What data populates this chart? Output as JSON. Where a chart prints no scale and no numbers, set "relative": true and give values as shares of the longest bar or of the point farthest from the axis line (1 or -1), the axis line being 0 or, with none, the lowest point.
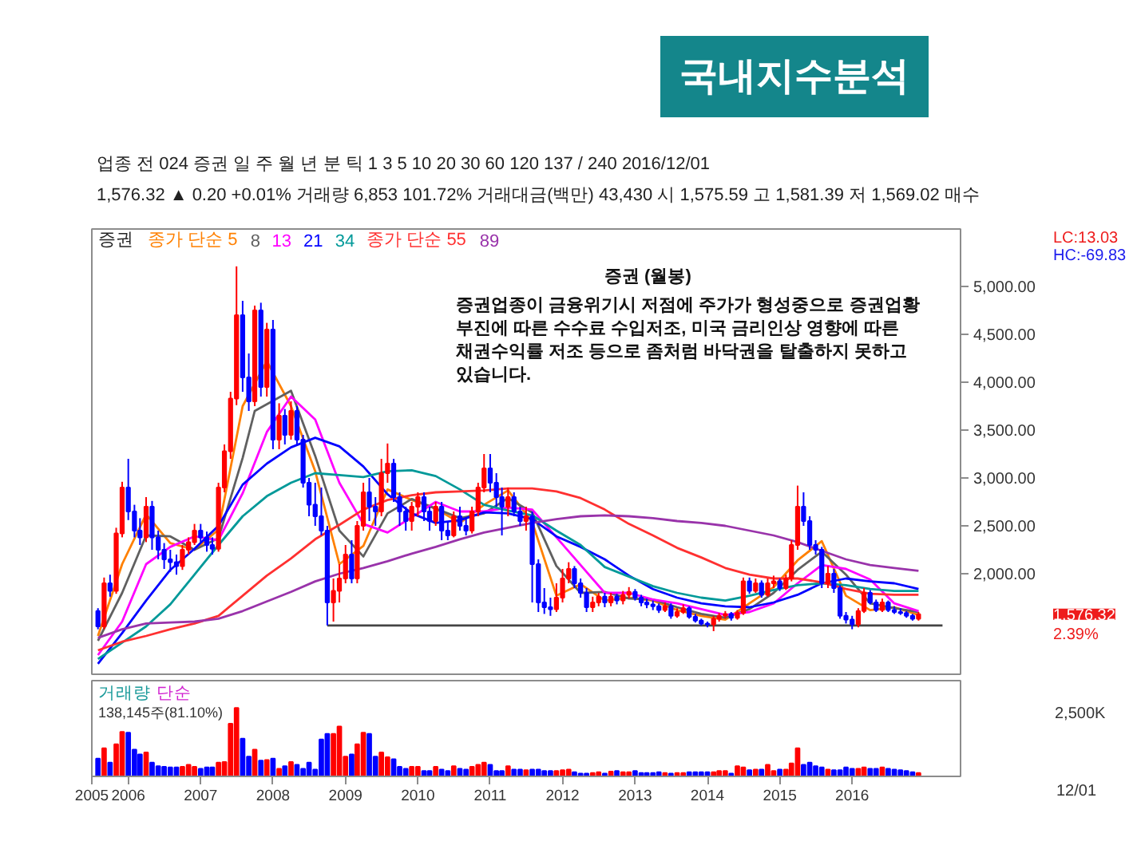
{
  "chart_data": [
    {
      "type": "other",
      "title": "국내지수분석",
      "annotations": [
        "업종 전 024 증권 일 주 월 년 분 틱 1 3 5 10 20 30 60 120 137 / 240 2016/12/01",
        "1,576.32 ▲ 0.20 +0.01% 거래량 6,853 101.72% 거래대금(백만) 43,430 시 1,575.59 고 1,581.39 저 1,569.02 매수"
      ]
    },
    {
      "type": "candlestick",
      "subtitle": "증권 (월봉)",
      "legend": "top left",
      "tick_labels": "y",
      "xlim": [
        "2005-07",
        "2017-07"
      ],
      "ylim": [
        950,
        5600
      ],
      "yticks": [
        {
          "value": 2000,
          "label": "2,000.00"
        },
        {
          "value": 2500,
          "label": "2,500.00"
        },
        {
          "value": 3000,
          "label": "3,000.00"
        },
        {
          "value": 3500,
          "label": "3,500.00"
        },
        {
          "value": 4000,
          "label": "4,000.00"
        },
        {
          "value": 4500,
          "label": "4,500.00"
        },
        {
          "value": 5000,
          "label": "5,000.00"
        }
      ],
      "annotations": [
        "증권",
        "증권업종이 금융위기시 저점에 주가가 형성중으로 증권업황 부진에 따른 수수료 수입저조, 미국 금리인상 영향에 따른 채권수익률 저조 등으로 좀처럼 바닥권을 탈출하지 못하고 있습니다.",
        "1,576.32",
        "2.39%",
        "LC:13.03",
        "HC:-69.83"
      ],
      "x": [
        "2005-08",
        "2005-09",
        "2005-10",
        "2005-11",
        "2005-12",
        "2006-01",
        "2006-02",
        "2006-03",
        "2006-04",
        "2006-05",
        "2006-06",
        "2006-07",
        "2006-08",
        "2006-09",
        "2006-10",
        "2006-11",
        "2006-12",
        "2007-01",
        "2007-02",
        "2007-03",
        "2007-04",
        "2007-05",
        "2007-06",
        "2007-07",
        "2007-08",
        "2007-09",
        "2007-10",
        "2007-11",
        "2007-12",
        "2008-01",
        "2008-02",
        "2008-03",
        "2008-04",
        "2008-05",
        "2008-06",
        "2008-07",
        "2008-08",
        "2008-09",
        "2008-10",
        "2008-11",
        "2008-12",
        "2009-01",
        "2009-02",
        "2009-03",
        "2009-04",
        "2009-05",
        "2009-06",
        "2009-07",
        "2009-08",
        "2009-09",
        "2009-10",
        "2009-11",
        "2009-12",
        "2010-01",
        "2010-02",
        "2010-03",
        "2010-04",
        "2010-05",
        "2010-06",
        "2010-07",
        "2010-08",
        "2010-09",
        "2010-10",
        "2010-11",
        "2010-12",
        "2011-01",
        "2011-02",
        "2011-03",
        "2011-04",
        "2011-05",
        "2011-06",
        "2011-07",
        "2011-08",
        "2011-09",
        "2011-10",
        "2011-11",
        "2011-12",
        "2012-01",
        "2012-02",
        "2012-03",
        "2012-04",
        "2012-05",
        "2012-06",
        "2012-07",
        "2012-08",
        "2012-09",
        "2012-10",
        "2012-11",
        "2012-12",
        "2013-01",
        "2013-02",
        "2013-03",
        "2013-04",
        "2013-05",
        "2013-06",
        "2013-07",
        "2013-08",
        "2013-09",
        "2013-10",
        "2013-11",
        "2013-12",
        "2014-01",
        "2014-02",
        "2014-03",
        "2014-04",
        "2014-05",
        "2014-06",
        "2014-07",
        "2014-08",
        "2014-09",
        "2014-10",
        "2014-11",
        "2014-12",
        "2015-01",
        "2015-02",
        "2015-03",
        "2015-04",
        "2015-05",
        "2015-06",
        "2015-07",
        "2015-08",
        "2015-09",
        "2015-10",
        "2015-11",
        "2015-12",
        "2016-01",
        "2016-02",
        "2016-03",
        "2016-04",
        "2016-05",
        "2016-06",
        "2016-07",
        "2016-08",
        "2016-09",
        "2016-10",
        "2016-11",
        "2016-12"
      ],
      "ohlc": [
        [
          1610,
          1640,
          1420,
          1450
        ],
        [
          1450,
          1960,
          1420,
          1900
        ],
        [
          1900,
          1990,
          1760,
          1820
        ],
        [
          1820,
          2480,
          1790,
          2420
        ],
        [
          2420,
          2960,
          2380,
          2900
        ],
        [
          2900,
          3200,
          2560,
          2650
        ],
        [
          2650,
          2720,
          2380,
          2450
        ],
        [
          2450,
          2580,
          2300,
          2380
        ],
        [
          2380,
          2800,
          2330,
          2700
        ],
        [
          2700,
          2760,
          2250,
          2380
        ],
        [
          2380,
          2450,
          2150,
          2250
        ],
        [
          2250,
          2320,
          2050,
          2150
        ],
        [
          2150,
          2250,
          2020,
          2120
        ],
        [
          2120,
          2200,
          1990,
          2080
        ],
        [
          2080,
          2300,
          2040,
          2250
        ],
        [
          2250,
          2380,
          2200,
          2330
        ],
        [
          2330,
          2520,
          2300,
          2450
        ],
        [
          2450,
          2520,
          2330,
          2380
        ],
        [
          2380,
          2440,
          2230,
          2300
        ],
        [
          2300,
          2380,
          2200,
          2260
        ],
        [
          2260,
          2950,
          2230,
          2900
        ],
        [
          2900,
          3350,
          2850,
          3280
        ],
        [
          3280,
          3900,
          3200,
          3830
        ],
        [
          3830,
          5210,
          3760,
          4700
        ],
        [
          4700,
          4850,
          3900,
          4050
        ],
        [
          4050,
          4300,
          3700,
          3800
        ],
        [
          3800,
          4800,
          3750,
          4750
        ],
        [
          4750,
          4830,
          3850,
          3950
        ],
        [
          3950,
          4620,
          3850,
          4550
        ],
        [
          4550,
          4650,
          3300,
          3400
        ],
        [
          3400,
          3780,
          3300,
          3650
        ],
        [
          3650,
          3720,
          3350,
          3450
        ],
        [
          3450,
          3800,
          3400,
          3700
        ],
        [
          3700,
          3750,
          3350,
          3400
        ],
        [
          3400,
          3450,
          2900,
          2950
        ],
        [
          2950,
          3000,
          2600,
          2720
        ],
        [
          2720,
          2950,
          2500,
          2600
        ],
        [
          2600,
          2900,
          2400,
          2450
        ],
        [
          2450,
          2500,
          1460,
          1700
        ],
        [
          1700,
          1950,
          1500,
          1820
        ],
        [
          1820,
          2100,
          1700,
          1950
        ],
        [
          1950,
          2300,
          1900,
          2200
        ],
        [
          2200,
          2350,
          1900,
          1950
        ],
        [
          1950,
          2550,
          1900,
          2500
        ],
        [
          2500,
          2950,
          2450,
          2850
        ],
        [
          2850,
          3000,
          2550,
          2700
        ],
        [
          2700,
          2800,
          2500,
          2650
        ],
        [
          2650,
          3200,
          2600,
          3050
        ],
        [
          3050,
          3360,
          2950,
          3150
        ],
        [
          3150,
          3200,
          2750,
          2800
        ],
        [
          2800,
          2850,
          2500,
          2650
        ],
        [
          2650,
          2700,
          2450,
          2550
        ],
        [
          2550,
          2750,
          2450,
          2700
        ],
        [
          2700,
          2850,
          2600,
          2800
        ],
        [
          2800,
          2850,
          2550,
          2650
        ],
        [
          2650,
          2700,
          2450,
          2550
        ],
        [
          2550,
          2750,
          2500,
          2700
        ],
        [
          2700,
          2750,
          2350,
          2450
        ],
        [
          2450,
          2550,
          2350,
          2400
        ],
        [
          2400,
          2650,
          2380,
          2600
        ],
        [
          2600,
          2700,
          2450,
          2500
        ],
        [
          2500,
          2580,
          2400,
          2450
        ],
        [
          2450,
          2700,
          2420,
          2650
        ],
        [
          2650,
          2950,
          2600,
          2900
        ],
        [
          2900,
          3250,
          2850,
          3100
        ],
        [
          3100,
          3250,
          2850,
          2950
        ],
        [
          2950,
          3050,
          2700,
          2800
        ],
        [
          2800,
          2900,
          2400,
          2700
        ],
        [
          2700,
          2900,
          2600,
          2800
        ],
        [
          2800,
          2850,
          2600,
          2650
        ],
        [
          2650,
          2700,
          2500,
          2550
        ],
        [
          2550,
          2700,
          2450,
          2600
        ],
        [
          2600,
          2650,
          1700,
          2100
        ],
        [
          2100,
          2150,
          1600,
          1700
        ],
        [
          1700,
          1850,
          1580,
          1650
        ],
        [
          1650,
          1750,
          1560,
          1630
        ],
        [
          1630,
          1900,
          1600,
          1750
        ],
        [
          1750,
          2050,
          1700,
          1950
        ],
        [
          1950,
          2120,
          1900,
          2050
        ],
        [
          2050,
          2080,
          1850,
          1900
        ],
        [
          1900,
          1950,
          1750,
          1800
        ],
        [
          1800,
          1850,
          1600,
          1650
        ],
        [
          1650,
          1760,
          1600,
          1700
        ],
        [
          1700,
          1800,
          1660,
          1760
        ],
        [
          1760,
          1800,
          1650,
          1700
        ],
        [
          1700,
          1800,
          1660,
          1760
        ],
        [
          1760,
          1790,
          1680,
          1720
        ],
        [
          1720,
          1820,
          1680,
          1780
        ],
        [
          1780,
          1860,
          1740,
          1810
        ],
        [
          1810,
          1840,
          1720,
          1750
        ],
        [
          1750,
          1780,
          1660,
          1700
        ],
        [
          1700,
          1740,
          1640,
          1680
        ],
        [
          1680,
          1720,
          1620,
          1660
        ],
        [
          1660,
          1690,
          1590,
          1620
        ],
        [
          1620,
          1700,
          1600,
          1660
        ],
        [
          1660,
          1690,
          1530,
          1560
        ],
        [
          1560,
          1640,
          1540,
          1600
        ],
        [
          1600,
          1680,
          1580,
          1640
        ],
        [
          1640,
          1660,
          1530,
          1550
        ],
        [
          1550,
          1580,
          1490,
          1510
        ],
        [
          1510,
          1530,
          1460,
          1480
        ],
        [
          1480,
          1500,
          1440,
          1470
        ],
        [
          1470,
          1560,
          1400,
          1530
        ],
        [
          1530,
          1590,
          1500,
          1560
        ],
        [
          1560,
          1610,
          1530,
          1580
        ],
        [
          1580,
          1600,
          1510,
          1540
        ],
        [
          1540,
          1620,
          1520,
          1590
        ],
        [
          1590,
          1960,
          1570,
          1920
        ],
        [
          1920,
          1960,
          1790,
          1820
        ],
        [
          1820,
          1950,
          1800,
          1900
        ],
        [
          1900,
          1930,
          1750,
          1780
        ],
        [
          1780,
          1950,
          1760,
          1900
        ],
        [
          1900,
          1980,
          1850,
          1920
        ],
        [
          1920,
          1950,
          1820,
          1850
        ],
        [
          1850,
          1990,
          1830,
          1950
        ],
        [
          1950,
          2350,
          1920,
          2300
        ],
        [
          2300,
          2920,
          2250,
          2700
        ],
        [
          2700,
          2850,
          2500,
          2550
        ],
        [
          2550,
          2600,
          2250,
          2300
        ],
        [
          2300,
          2350,
          2200,
          2250
        ],
        [
          2250,
          2280,
          1850,
          1900
        ],
        [
          1900,
          2080,
          1850,
          2000
        ],
        [
          2000,
          2050,
          1800,
          1850
        ],
        [
          1850,
          1880,
          1530,
          1560
        ],
        [
          1560,
          1600,
          1480,
          1520
        ],
        [
          1520,
          1560,
          1420,
          1470
        ],
        [
          1470,
          1640,
          1440,
          1610
        ],
        [
          1610,
          1850,
          1590,
          1800
        ],
        [
          1800,
          1830,
          1680,
          1700
        ],
        [
          1700,
          1730,
          1600,
          1620
        ],
        [
          1620,
          1740,
          1600,
          1700
        ],
        [
          1700,
          1720,
          1600,
          1620
        ],
        [
          1620,
          1660,
          1580,
          1600
        ],
        [
          1600,
          1640,
          1570,
          1590
        ],
        [
          1590,
          1610,
          1540,
          1560
        ],
        [
          1560,
          1580,
          1510,
          1530
        ],
        [
          1530,
          1600,
          1510,
          1576.32
        ]
      ],
      "colors": [
        "#0000ff",
        "#ff0000",
        "#0000ff",
        "#ff0000",
        "#ff0000",
        "#0000ff",
        "#0000ff",
        "#0000ff",
        "#ff0000",
        "#0000ff",
        "#0000ff",
        "#0000ff",
        "#0000ff",
        "#0000ff",
        "#ff0000",
        "#ff0000",
        "#ff0000",
        "#0000ff",
        "#0000ff",
        "#0000ff",
        "#ff0000",
        "#ff0000",
        "#ff0000",
        "#ff0000",
        "#0000ff",
        "#0000ff",
        "#ff0000",
        "#0000ff",
        "#ff0000",
        "#0000ff",
        "#ff0000",
        "#0000ff",
        "#ff0000",
        "#0000ff",
        "#0000ff",
        "#0000ff",
        "#0000ff",
        "#0000ff",
        "#0000ff",
        "#ff0000",
        "#ff0000",
        "#ff0000",
        "#0000ff",
        "#ff0000",
        "#ff0000",
        "#0000ff",
        "#0000ff",
        "#ff0000",
        "#ff0000",
        "#0000ff",
        "#0000ff",
        "#0000ff",
        "#ff0000",
        "#ff0000",
        "#0000ff",
        "#0000ff",
        "#ff0000",
        "#0000ff",
        "#0000ff",
        "#ff0000",
        "#0000ff",
        "#0000ff",
        "#ff0000",
        "#ff0000",
        "#ff0000",
        "#0000ff",
        "#0000ff",
        "#0000ff",
        "#ff0000",
        "#0000ff",
        "#0000ff",
        "#ff0000",
        "#0000ff",
        "#0000ff",
        "#0000ff",
        "#0000ff",
        "#ff0000",
        "#ff0000",
        "#ff0000",
        "#0000ff",
        "#0000ff",
        "#0000ff",
        "#ff0000",
        "#ff0000",
        "#0000ff",
        "#ff0000",
        "#0000ff",
        "#ff0000",
        "#ff0000",
        "#0000ff",
        "#0000ff",
        "#0000ff",
        "#0000ff",
        "#0000ff",
        "#ff0000",
        "#0000ff",
        "#ff0000",
        "#ff0000",
        "#0000ff",
        "#0000ff",
        "#0000ff",
        "#0000ff",
        "#ff0000",
        "#ff0000",
        "#ff0000",
        "#0000ff",
        "#ff0000",
        "#ff0000",
        "#0000ff",
        "#ff0000",
        "#0000ff",
        "#ff0000",
        "#ff0000",
        "#0000ff",
        "#ff0000",
        "#ff0000",
        "#ff0000",
        "#0000ff",
        "#0000ff",
        "#0000ff",
        "#0000ff",
        "#ff0000",
        "#0000ff",
        "#0000ff",
        "#0000ff",
        "#0000ff",
        "#ff0000",
        "#ff0000",
        "#0000ff",
        "#0000ff",
        "#ff0000",
        "#0000ff",
        "#0000ff",
        "#0000ff",
        "#0000ff",
        "#0000ff",
        "#ff0000"
      ],
      "series": [
        {
          "name": "종가 단순 5",
          "type": "line",
          "color": "#ff8000",
          "x": [
            "2005-08",
            "2005-12",
            "2006-04",
            "2006-08",
            "2006-12",
            "2007-04",
            "2007-08",
            "2007-12",
            "2008-04",
            "2008-08",
            "2008-12",
            "2009-04",
            "2009-08",
            "2009-12",
            "2010-04",
            "2010-08",
            "2010-12",
            "2011-04",
            "2011-08",
            "2011-12",
            "2012-04",
            "2012-08",
            "2012-12",
            "2013-04",
            "2013-08",
            "2013-12",
            "2014-04",
            "2014-08",
            "2014-12",
            "2015-04",
            "2015-08",
            "2015-12",
            "2016-04",
            "2016-08",
            "2016-12"
          ],
          "values": [
            1350,
            2100,
            2620,
            2320,
            2250,
            2460,
            3750,
            4220,
            3750,
            3070,
            2100,
            2290,
            2880,
            2770,
            2680,
            2530,
            2720,
            2870,
            2540,
            1770,
            1890,
            1720,
            1750,
            1720,
            1620,
            1560,
            1520,
            1690,
            1860,
            2140,
            2340,
            1770,
            1620,
            1650,
            1570
          ]
        },
        {
          "name": "8",
          "type": "line",
          "color": "#606060",
          "x": [
            "2005-08",
            "2005-12",
            "2006-04",
            "2006-08",
            "2006-12",
            "2007-04",
            "2007-08",
            "2007-10",
            "2008-04",
            "2008-08",
            "2008-12",
            "2009-04",
            "2009-08",
            "2009-12",
            "2010-04",
            "2010-08",
            "2010-12",
            "2011-04",
            "2011-08",
            "2011-12",
            "2012-04",
            "2012-08",
            "2012-12",
            "2013-04",
            "2013-08",
            "2013-12",
            "2014-04",
            "2014-08",
            "2014-12",
            "2015-04",
            "2015-08",
            "2015-12",
            "2016-04",
            "2016-08",
            "2016-12"
          ],
          "values": [
            1300,
            1800,
            2400,
            2390,
            2250,
            2370,
            3210,
            3700,
            3910,
            3230,
            2450,
            2180,
            2630,
            2780,
            2680,
            2580,
            2630,
            2790,
            2640,
            2080,
            1800,
            1810,
            1740,
            1730,
            1650,
            1580,
            1540,
            1630,
            1800,
            2040,
            2230,
            1990,
            1690,
            1640,
            1600
          ]
        },
        {
          "name": "13",
          "type": "line",
          "color": "#ff00ff",
          "x": [
            "2005-08",
            "2005-12",
            "2006-04",
            "2006-08",
            "2006-12",
            "2007-04",
            "2007-08",
            "2007-12",
            "2008-04",
            "2008-08",
            "2008-12",
            "2009-04",
            "2009-08",
            "2009-12",
            "2010-04",
            "2010-08",
            "2010-12",
            "2011-04",
            "2011-08",
            "2011-12",
            "2012-04",
            "2012-08",
            "2012-12",
            "2013-04",
            "2013-08",
            "2013-12",
            "2014-04",
            "2014-08",
            "2014-12",
            "2015-04",
            "2015-08",
            "2015-12",
            "2016-04",
            "2016-08",
            "2016-12"
          ],
          "values": [
            1150,
            1500,
            2100,
            2280,
            2390,
            2350,
            2840,
            3480,
            3850,
            3610,
            2950,
            2520,
            2430,
            2590,
            2750,
            2650,
            2650,
            2690,
            2670,
            2380,
            2090,
            1800,
            1800,
            1730,
            1690,
            1630,
            1570,
            1600,
            1690,
            1900,
            2090,
            2050,
            1940,
            1690,
            1610
          ]
        },
        {
          "name": "21",
          "type": "line",
          "color": "#0000ff",
          "x": [
            "2005-08",
            "2005-12",
            "2006-04",
            "2006-08",
            "2006-12",
            "2007-04",
            "2007-08",
            "2007-12",
            "2008-04",
            "2008-08",
            "2008-12",
            "2009-04",
            "2009-08",
            "2009-12",
            "2010-04",
            "2010-08",
            "2010-12",
            "2011-04",
            "2011-08",
            "2011-12",
            "2012-04",
            "2012-08",
            "2012-12",
            "2013-04",
            "2013-08",
            "2013-12",
            "2014-04",
            "2014-08",
            "2014-12",
            "2015-04",
            "2015-08",
            "2015-12",
            "2016-04",
            "2016-08",
            "2016-12"
          ],
          "values": [
            1060,
            1380,
            1720,
            2040,
            2260,
            2500,
            2930,
            3150,
            3320,
            3420,
            3330,
            3120,
            2830,
            2630,
            2530,
            2560,
            2640,
            2630,
            2570,
            2390,
            2280,
            2150,
            1980,
            1840,
            1750,
            1690,
            1660,
            1650,
            1700,
            1780,
            1900,
            1950,
            1920,
            1900,
            1840
          ]
        },
        {
          "name": "34",
          "type": "line",
          "color": "#009999",
          "x": [
            "2005-08",
            "2005-12",
            "2006-04",
            "2006-08",
            "2006-12",
            "2007-04",
            "2007-08",
            "2007-12",
            "2008-04",
            "2008-08",
            "2008-12",
            "2009-04",
            "2009-08",
            "2009-12",
            "2010-04",
            "2010-08",
            "2010-12",
            "2011-04",
            "2011-08",
            "2011-12",
            "2012-04",
            "2012-08",
            "2012-12",
            "2013-04",
            "2013-08",
            "2013-12",
            "2014-04",
            "2014-08",
            "2014-12",
            "2015-04",
            "2015-08",
            "2015-12",
            "2016-04",
            "2016-08",
            "2016-12"
          ],
          "values": [
            1110,
            1280,
            1450,
            1680,
            1990,
            2300,
            2600,
            2810,
            2950,
            3050,
            3030,
            3010,
            3070,
            3080,
            3020,
            2880,
            2720,
            2660,
            2610,
            2450,
            2300,
            2070,
            1970,
            1870,
            1800,
            1750,
            1720,
            1770,
            1830,
            1880,
            1900,
            1880,
            1840,
            1820,
            1820
          ]
        },
        {
          "name": "종가 단순 55",
          "type": "line",
          "color": "#ff3030",
          "x": [
            "2005-08",
            "2005-12",
            "2006-04",
            "2006-08",
            "2006-12",
            "2007-04",
            "2007-08",
            "2007-12",
            "2008-04",
            "2008-08",
            "2008-12",
            "2009-04",
            "2009-08",
            "2009-12",
            "2010-04",
            "2010-08",
            "2010-12",
            "2011-04",
            "2011-08",
            "2011-12",
            "2012-04",
            "2012-08",
            "2012-12",
            "2013-04",
            "2013-08",
            "2013-12",
            "2014-04",
            "2014-08",
            "2014-12",
            "2015-04",
            "2015-08",
            "2015-12",
            "2016-04",
            "2016-08",
            "2016-12"
          ],
          "values": [
            1200,
            1290,
            1350,
            1420,
            1480,
            1560,
            1770,
            1980,
            2160,
            2360,
            2510,
            2670,
            2770,
            2820,
            2850,
            2860,
            2870,
            2890,
            2890,
            2860,
            2790,
            2670,
            2520,
            2400,
            2270,
            2170,
            2060,
            1990,
            1950,
            1950,
            1910,
            1840,
            1790,
            1780,
            1780
          ]
        },
        {
          "name": "89",
          "type": "line",
          "color": "#9933aa",
          "x": [
            "2005-08",
            "2005-12",
            "2006-04",
            "2006-08",
            "2006-12",
            "2007-04",
            "2007-08",
            "2007-12",
            "2008-04",
            "2008-08",
            "2008-12",
            "2009-04",
            "2009-08",
            "2009-12",
            "2010-04",
            "2010-08",
            "2010-12",
            "2011-04",
            "2011-08",
            "2011-12",
            "2012-04",
            "2012-08",
            "2012-12",
            "2013-04",
            "2013-08",
            "2013-12",
            "2014-04",
            "2014-08",
            "2014-12",
            "2015-04",
            "2015-08",
            "2015-12",
            "2016-04",
            "2016-08",
            "2016-12"
          ],
          "values": [
            1330,
            1420,
            1480,
            1490,
            1500,
            1530,
            1610,
            1710,
            1810,
            1920,
            2000,
            2060,
            2130,
            2210,
            2280,
            2360,
            2430,
            2480,
            2530,
            2570,
            2600,
            2610,
            2600,
            2580,
            2550,
            2530,
            2500,
            2450,
            2400,
            2330,
            2240,
            2150,
            2090,
            2060,
            2030
          ]
        },
        {
          "type": "line",
          "color": "#444444",
          "x": [
            "2008-10",
            "2017-04"
          ],
          "values": [
            1460,
            1460
          ]
        }
      ]
    },
    {
      "type": "bar",
      "relative": true,
      "xlim": [
        "2005-07",
        "2017-07"
      ],
      "xticks": [
        {
          "value": "2005-07",
          "label": "2005"
        },
        {
          "value": "2006-01",
          "label": "2006"
        },
        {
          "value": "2007-01",
          "label": "2007"
        },
        {
          "value": "2008-01",
          "label": "2008"
        },
        {
          "value": "2009-01",
          "label": "2009"
        },
        {
          "value": "2010-01",
          "label": "2010"
        },
        {
          "value": "2011-01",
          "label": "2011"
        },
        {
          "value": "2012-01",
          "label": "2012"
        },
        {
          "value": "2013-01",
          "label": "2013"
        },
        {
          "value": "2014-01",
          "label": "2014"
        },
        {
          "value": "2015-01",
          "label": "2015"
        },
        {
          "value": "2016-01",
          "label": "2016"
        }
      ],
      "annotations": [
        "거래량",
        "단순",
        "138,145주(81.10%)",
        "2,500K",
        "12/01"
      ],
      "x": [
        "2005-08",
        "2005-09",
        "2005-10",
        "2005-11",
        "2005-12",
        "2006-01",
        "2006-02",
        "2006-03",
        "2006-04",
        "2006-05",
        "2006-06",
        "2006-07",
        "2006-08",
        "2006-09",
        "2006-10",
        "2006-11",
        "2006-12",
        "2007-01",
        "2007-02",
        "2007-03",
        "2007-04",
        "2007-05",
        "2007-06",
        "2007-07",
        "2007-08",
        "2007-09",
        "2007-10",
        "2007-11",
        "2007-12",
        "2008-01",
        "2008-02",
        "2008-03",
        "2008-04",
        "2008-05",
        "2008-06",
        "2008-07",
        "2008-08",
        "2008-09",
        "2008-10",
        "2008-11",
        "2008-12",
        "2009-01",
        "2009-02",
        "2009-03",
        "2009-04",
        "2009-05",
        "2009-06",
        "2009-07",
        "2009-08",
        "2009-09",
        "2009-10",
        "2009-11",
        "2009-12",
        "2010-01",
        "2010-02",
        "2010-03",
        "2010-04",
        "2010-05",
        "2010-06",
        "2010-07",
        "2010-08",
        "2010-09",
        "2010-10",
        "2010-11",
        "2010-12",
        "2011-01",
        "2011-02",
        "2011-03",
        "2011-04",
        "2011-05",
        "2011-06",
        "2011-07",
        "2011-08",
        "2011-09",
        "2011-10",
        "2011-11",
        "2011-12",
        "2012-01",
        "2012-02",
        "2012-03",
        "2012-04",
        "2012-05",
        "2012-06",
        "2012-07",
        "2012-08",
        "2012-09",
        "2012-10",
        "2012-11",
        "2012-12",
        "2013-01",
        "2013-02",
        "2013-03",
        "2013-04",
        "2013-05",
        "2013-06",
        "2013-07",
        "2013-08",
        "2013-09",
        "2013-10",
        "2013-11",
        "2013-12",
        "2014-01",
        "2014-02",
        "2014-03",
        "2014-04",
        "2014-05",
        "2014-06",
        "2014-07",
        "2014-08",
        "2014-09",
        "2014-10",
        "2014-11",
        "2014-12",
        "2015-01",
        "2015-02",
        "2015-03",
        "2015-04",
        "2015-05",
        "2015-06",
        "2015-07",
        "2015-08",
        "2015-09",
        "2015-10",
        "2015-11",
        "2015-12",
        "2016-01",
        "2016-02",
        "2016-03",
        "2016-04",
        "2016-05",
        "2016-06",
        "2016-07",
        "2016-08",
        "2016-09",
        "2016-10",
        "2016-11",
        "2016-12"
      ],
      "values": [
        0.26,
        0.41,
        0.2,
        0.47,
        0.65,
        0.64,
        0.39,
        0.32,
        0.35,
        0.2,
        0.15,
        0.14,
        0.13,
        0.13,
        0.14,
        0.17,
        0.14,
        0.11,
        0.13,
        0.13,
        0.2,
        0.21,
        0.77,
        1,
        0.55,
        0.29,
        0.39,
        0.23,
        0.24,
        0.26,
        0.11,
        0.15,
        0.21,
        0.17,
        0.11,
        0.2,
        0.1,
        0.54,
        0.62,
        0.62,
        0.73,
        0.29,
        0.32,
        0.47,
        0.64,
        0.62,
        0.29,
        0.35,
        0.28,
        0.25,
        0.14,
        0.11,
        0.14,
        0.14,
        0.08,
        0.08,
        0.14,
        0.1,
        0.08,
        0.15,
        0.11,
        0.1,
        0.14,
        0.17,
        0.2,
        0.17,
        0.08,
        0.08,
        0.15,
        0.1,
        0.1,
        0.09,
        0.1,
        0.1,
        0.08,
        0.08,
        0.08,
        0.09,
        0.1,
        0.06,
        0.04,
        0.04,
        0.05,
        0.06,
        0.04,
        0.07,
        0.08,
        0.06,
        0.06,
        0.08,
        0.05,
        0.05,
        0.05,
        0.06,
        0.05,
        0.04,
        0.05,
        0.05,
        0.06,
        0.06,
        0.06,
        0.06,
        0.06,
        0.08,
        0.08,
        0.04,
        0.15,
        0.13,
        0.09,
        0.1,
        0.1,
        0.17,
        0.08,
        0.1,
        0.1,
        0.19,
        0.41,
        0.17,
        0.2,
        0.15,
        0.13,
        0.1,
        0.09,
        0.09,
        0.13,
        0.11,
        0.11,
        0.13,
        0.11,
        0.11,
        0.13,
        0.11,
        0.1,
        0.09,
        0.08,
        0.06,
        0.05
      ],
      "colors": [
        "#0000ff",
        "#ff0000",
        "#0000ff",
        "#ff0000",
        "#ff0000",
        "#0000ff",
        "#0000ff",
        "#0000ff",
        "#ff0000",
        "#0000ff",
        "#0000ff",
        "#0000ff",
        "#0000ff",
        "#0000ff",
        "#ff0000",
        "#ff0000",
        "#ff0000",
        "#0000ff",
        "#0000ff",
        "#0000ff",
        "#ff0000",
        "#ff0000",
        "#ff0000",
        "#ff0000",
        "#0000ff",
        "#0000ff",
        "#ff0000",
        "#0000ff",
        "#ff0000",
        "#0000ff",
        "#ff0000",
        "#0000ff",
        "#ff0000",
        "#0000ff",
        "#0000ff",
        "#0000ff",
        "#0000ff",
        "#0000ff",
        "#0000ff",
        "#ff0000",
        "#ff0000",
        "#ff0000",
        "#0000ff",
        "#ff0000",
        "#ff0000",
        "#0000ff",
        "#0000ff",
        "#ff0000",
        "#ff0000",
        "#0000ff",
        "#0000ff",
        "#0000ff",
        "#ff0000",
        "#ff0000",
        "#0000ff",
        "#0000ff",
        "#ff0000",
        "#0000ff",
        "#0000ff",
        "#ff0000",
        "#0000ff",
        "#0000ff",
        "#ff0000",
        "#ff0000",
        "#ff0000",
        "#0000ff",
        "#0000ff",
        "#0000ff",
        "#ff0000",
        "#0000ff",
        "#0000ff",
        "#ff0000",
        "#0000ff",
        "#0000ff",
        "#0000ff",
        "#0000ff",
        "#ff0000",
        "#ff0000",
        "#ff0000",
        "#0000ff",
        "#0000ff",
        "#0000ff",
        "#ff0000",
        "#ff0000",
        "#0000ff",
        "#ff0000",
        "#0000ff",
        "#ff0000",
        "#ff0000",
        "#0000ff",
        "#0000ff",
        "#0000ff",
        "#0000ff",
        "#0000ff",
        "#ff0000",
        "#0000ff",
        "#ff0000",
        "#ff0000",
        "#0000ff",
        "#0000ff",
        "#0000ff",
        "#0000ff",
        "#ff0000",
        "#ff0000",
        "#ff0000",
        "#0000ff",
        "#ff0000",
        "#ff0000",
        "#0000ff",
        "#ff0000",
        "#0000ff",
        "#ff0000",
        "#ff0000",
        "#0000ff",
        "#ff0000",
        "#ff0000",
        "#ff0000",
        "#0000ff",
        "#0000ff",
        "#0000ff",
        "#0000ff",
        "#ff0000",
        "#0000ff",
        "#0000ff",
        "#0000ff",
        "#0000ff",
        "#ff0000",
        "#ff0000",
        "#0000ff",
        "#0000ff",
        "#ff0000",
        "#0000ff",
        "#0000ff",
        "#0000ff",
        "#0000ff",
        "#0000ff",
        "#ff0000"
      ]
    }
  ]
}
